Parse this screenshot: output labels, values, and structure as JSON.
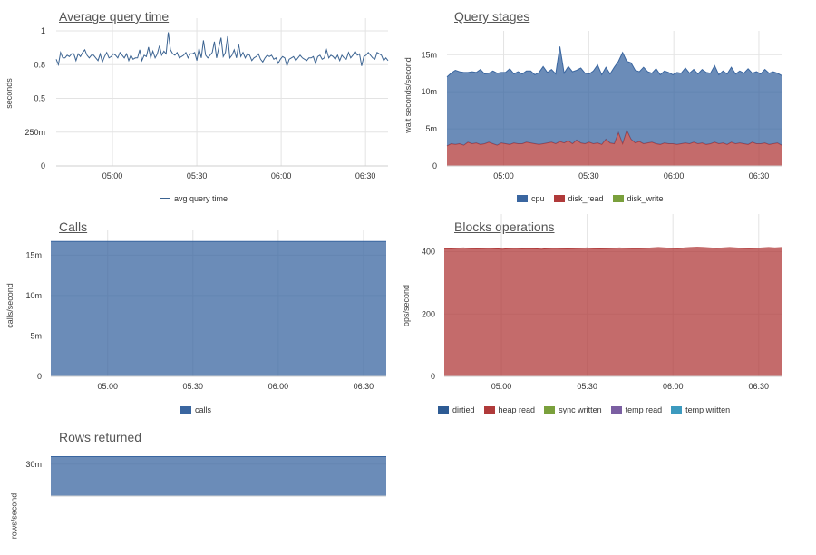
{
  "panels": {
    "avg": {
      "title": "Average query time",
      "ylabel": "seconds",
      "legend": [
        {
          "name": "avg query time",
          "color": "#3b6391",
          "kind": "line"
        }
      ]
    },
    "stages": {
      "title": "Query stages",
      "ylabel": "wait seconds/second",
      "legend": [
        {
          "name": "cpu",
          "color": "#3a66a0",
          "kind": "box"
        },
        {
          "name": "disk_read",
          "color": "#b03a3a",
          "kind": "box"
        },
        {
          "name": "disk_write",
          "color": "#7aa03c",
          "kind": "box"
        }
      ]
    },
    "calls": {
      "title": "Calls",
      "ylabel": "calls/second",
      "legend": [
        {
          "name": "calls",
          "color": "#3a66a0",
          "kind": "box"
        }
      ]
    },
    "blocks": {
      "title": "Blocks operations",
      "ylabel": "ops/second",
      "legend": [
        {
          "name": "dirtied",
          "color": "#2e5b94",
          "kind": "box"
        },
        {
          "name": "heap read",
          "color": "#b03a3a",
          "kind": "box"
        },
        {
          "name": "sync written",
          "color": "#7aa03c",
          "kind": "box"
        },
        {
          "name": "temp read",
          "color": "#7b5fa2",
          "kind": "box"
        },
        {
          "name": "temp written",
          "color": "#3c9abf",
          "kind": "box"
        }
      ]
    },
    "rows": {
      "title": "Rows returned",
      "ylabel": "rows/second"
    }
  },
  "chart_data": [
    {
      "id": "avg",
      "type": "line",
      "title": "Average query time",
      "ylabel": "seconds",
      "x_range": [
        "04:40",
        "06:38"
      ],
      "ylim": [
        0,
        1
      ],
      "xticks": [
        "05:00",
        "05:30",
        "06:00",
        "06:30"
      ],
      "yticks": [
        {
          "v": 0,
          "label": "0"
        },
        {
          "v": 0.25,
          "label": "250m"
        },
        {
          "v": 0.5,
          "label": "0.5"
        },
        {
          "v": 0.75,
          "label": "0.8"
        },
        {
          "v": 1,
          "label": "1"
        }
      ],
      "grid": true,
      "series": [
        {
          "name": "avg query time",
          "color": "#3b6391",
          "values": [
            0.79,
            0.75,
            0.84,
            0.8,
            0.8,
            0.82,
            0.81,
            0.83,
            0.83,
            0.78,
            0.83,
            0.81,
            0.84,
            0.86,
            0.82,
            0.8,
            0.82,
            0.82,
            0.8,
            0.78,
            0.83,
            0.77,
            0.81,
            0.84,
            0.8,
            0.81,
            0.83,
            0.82,
            0.8,
            0.84,
            0.82,
            0.8,
            0.83,
            0.78,
            0.82,
            0.79,
            0.8,
            0.8,
            0.86,
            0.78,
            0.82,
            0.81,
            0.88,
            0.8,
            0.85,
            0.8,
            0.83,
            0.89,
            0.82,
            0.85,
            0.83,
            0.99,
            0.86,
            0.83,
            0.82,
            0.84,
            0.8,
            0.81,
            0.82,
            0.84,
            0.8,
            0.83,
            0.83,
            0.84,
            0.78,
            0.87,
            0.8,
            0.93,
            0.82,
            0.8,
            0.82,
            0.84,
            0.92,
            0.8,
            0.88,
            0.95,
            0.81,
            0.84,
            0.96,
            0.8,
            0.82,
            0.86,
            0.8,
            0.9,
            0.81,
            0.84,
            0.8,
            0.83,
            0.82,
            0.78,
            0.8,
            0.81,
            0.83,
            0.79,
            0.77,
            0.8,
            0.82,
            0.81,
            0.82,
            0.79,
            0.8,
            0.76,
            0.79,
            0.81,
            0.8,
            0.74,
            0.79,
            0.8,
            0.81,
            0.78,
            0.8,
            0.82,
            0.8,
            0.79,
            0.78,
            0.8,
            0.8,
            0.81,
            0.76,
            0.81,
            0.82,
            0.79,
            0.8,
            0.86,
            0.8,
            0.82,
            0.81,
            0.79,
            0.82,
            0.78,
            0.82,
            0.8,
            0.79,
            0.84,
            0.8,
            0.82,
            0.85,
            0.82,
            0.83,
            0.74,
            0.81,
            0.82,
            0.84,
            0.82,
            0.8,
            0.79,
            0.84,
            0.83,
            0.82,
            0.78,
            0.8,
            0.78
          ]
        }
      ]
    },
    {
      "id": "stages",
      "type": "area",
      "stacked": true,
      "title": "Query stages",
      "ylabel": "wait seconds/second",
      "x_range": [
        "04:40",
        "06:38"
      ],
      "ylim": [
        0,
        0.0165
      ],
      "xticks": [
        "05:00",
        "05:30",
        "06:00",
        "06:30"
      ],
      "yticks": [
        {
          "v": 0,
          "label": "0"
        },
        {
          "v": 0.005,
          "label": "5m"
        },
        {
          "v": 0.01,
          "label": "10m"
        },
        {
          "v": 0.015,
          "label": "15m"
        }
      ],
      "grid": true,
      "series": [
        {
          "name": "disk_write",
          "color": "#7aa03c",
          "values": [
            0,
            0
          ]
        },
        {
          "name": "disk_read",
          "color": "#b03a3a",
          "values": [
            0.0027,
            0.003,
            0.0029,
            0.003,
            0.0028,
            0.0032,
            0.003,
            0.0031,
            0.0029,
            0.003,
            0.0032,
            0.003,
            0.0028,
            0.0031,
            0.003,
            0.0029,
            0.0031,
            0.003,
            0.003,
            0.0032,
            0.0031,
            0.003,
            0.0029,
            0.003,
            0.0031,
            0.0032,
            0.003,
            0.0033,
            0.0031,
            0.0034,
            0.003,
            0.0035,
            0.0031,
            0.003,
            0.0032,
            0.003,
            0.0031,
            0.0029,
            0.0036,
            0.0031,
            0.003,
            0.0045,
            0.003,
            0.0048,
            0.0036,
            0.0031,
            0.0033,
            0.003,
            0.0031,
            0.0032,
            0.003,
            0.0029,
            0.0031,
            0.003,
            0.003,
            0.0029,
            0.003,
            0.0031,
            0.003,
            0.0032,
            0.003,
            0.0031,
            0.0029,
            0.003,
            0.0032,
            0.003,
            0.0031,
            0.0029,
            0.0032,
            0.003,
            0.0031,
            0.003,
            0.0029,
            0.0032,
            0.003,
            0.003,
            0.0031,
            0.0029,
            0.003,
            0.0031,
            0.0028
          ]
        },
        {
          "name": "cpu",
          "color": "#3a66a0",
          "values": [
            0.0093,
            0.0095,
            0.01,
            0.0097,
            0.0098,
            0.0094,
            0.0097,
            0.0095,
            0.0101,
            0.0094,
            0.0093,
            0.0098,
            0.0097,
            0.0095,
            0.0096,
            0.0102,
            0.0093,
            0.0097,
            0.0094,
            0.0096,
            0.0097,
            0.0093,
            0.0097,
            0.0104,
            0.0095,
            0.0098,
            0.0094,
            0.0128,
            0.0094,
            0.01,
            0.0097,
            0.0094,
            0.0101,
            0.0095,
            0.0092,
            0.0098,
            0.0105,
            0.0094,
            0.0097,
            0.0093,
            0.0103,
            0.0096,
            0.0123,
            0.0093,
            0.0103,
            0.0098,
            0.0094,
            0.0103,
            0.0096,
            0.0093,
            0.0101,
            0.0094,
            0.0097,
            0.0096,
            0.0093,
            0.0097,
            0.0095,
            0.0101,
            0.0095,
            0.0098,
            0.0094,
            0.0099,
            0.0097,
            0.0095,
            0.0103,
            0.0093,
            0.0097,
            0.0095,
            0.0101,
            0.0094,
            0.0097,
            0.0095,
            0.0102,
            0.0093,
            0.0097,
            0.0094,
            0.0099,
            0.0096,
            0.0097,
            0.0094,
            0.0094
          ]
        }
      ]
    },
    {
      "id": "calls",
      "type": "area",
      "title": "Calls",
      "ylabel": "calls/second",
      "x_range": [
        "04:40",
        "06:38"
      ],
      "ylim": [
        0,
        0.0165
      ],
      "xticks": [
        "05:00",
        "05:30",
        "06:00",
        "06:30"
      ],
      "yticks": [
        {
          "v": 0,
          "label": "0"
        },
        {
          "v": 0.005,
          "label": "5m"
        },
        {
          "v": 0.01,
          "label": "10m"
        },
        {
          "v": 0.015,
          "label": "15m"
        }
      ],
      "grid": true,
      "series": [
        {
          "name": "calls",
          "color": "#3a66a0",
          "values": [
            0.0167,
            0.0167
          ]
        }
      ]
    },
    {
      "id": "blocks",
      "type": "area",
      "stacked": true,
      "title": "Blocks operations",
      "ylabel": "ops/second",
      "x_range": [
        "04:40",
        "06:38"
      ],
      "ylim": [
        0,
        480
      ],
      "xticks": [
        "05:00",
        "05:30",
        "06:00",
        "06:30"
      ],
      "yticks": [
        {
          "v": 0,
          "label": "0"
        },
        {
          "v": 200,
          "label": "200"
        },
        {
          "v": 400,
          "label": "400"
        }
      ],
      "grid": true,
      "series": [
        {
          "name": "heap read",
          "color": "#b03a3a",
          "values": [
            410,
            409,
            411,
            412,
            410,
            409,
            410,
            411,
            409,
            408,
            410,
            411,
            409,
            410,
            409,
            408,
            410,
            411,
            410,
            409,
            410,
            411,
            412,
            410,
            409,
            410,
            411,
            412,
            411,
            410,
            410,
            411,
            412,
            413,
            412,
            411,
            410,
            412,
            413,
            414,
            413,
            412,
            411,
            412,
            413,
            412,
            411,
            410,
            411,
            412,
            413,
            412,
            413
          ]
        },
        {
          "name": "dirtied",
          "color": "#2e5b94",
          "values": [
            0,
            0
          ]
        },
        {
          "name": "sync written",
          "color": "#7aa03c",
          "values": [
            0,
            0
          ]
        },
        {
          "name": "temp read",
          "color": "#7b5fa2",
          "values": [
            0,
            0
          ]
        },
        {
          "name": "temp written",
          "color": "#3c9abf",
          "values": [
            0,
            0
          ]
        }
      ]
    },
    {
      "id": "rows",
      "type": "area",
      "title": "Rows returned",
      "ylabel": "rows/second",
      "x_range": [
        "04:40",
        "06:38"
      ],
      "ylim": [
        0,
        0.04
      ],
      "yticks": [
        {
          "v": 0.03,
          "label": "30m"
        }
      ],
      "grid": true,
      "series": [
        {
          "name": "rows",
          "color": "#3a66a0",
          "values": [
            0.037,
            0.037
          ]
        }
      ]
    }
  ]
}
